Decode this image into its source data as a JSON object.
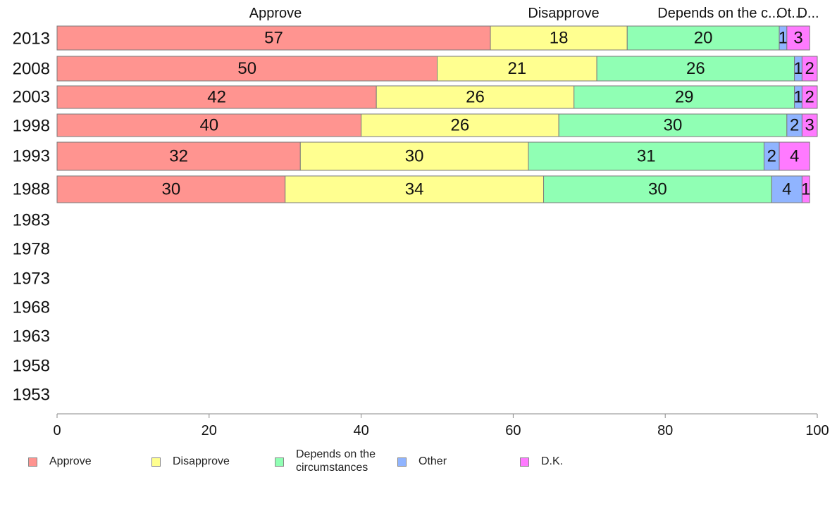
{
  "chart_data": {
    "type": "bar",
    "orientation": "horizontal",
    "stacked": true,
    "categories": [
      "2013",
      "2008",
      "2003",
      "1998",
      "1993",
      "1988",
      "1983",
      "1978",
      "1973",
      "1968",
      "1963",
      "1958",
      "1953"
    ],
    "series": [
      {
        "name": "Approve",
        "color": "#ff9490",
        "values": [
          57,
          50,
          42,
          40,
          32,
          30,
          null,
          null,
          null,
          null,
          null,
          null,
          null
        ]
      },
      {
        "name": "Disapprove",
        "color": "#ffff90",
        "values": [
          18,
          21,
          26,
          26,
          30,
          34,
          null,
          null,
          null,
          null,
          null,
          null,
          null
        ]
      },
      {
        "name": "Depends on the circumstances",
        "color": "#90ffb4",
        "values": [
          20,
          26,
          29,
          30,
          31,
          30,
          null,
          null,
          null,
          null,
          null,
          null,
          null
        ]
      },
      {
        "name": "Other",
        "color": "#90b4ff",
        "values": [
          1,
          1,
          1,
          2,
          2,
          4,
          null,
          null,
          null,
          null,
          null,
          null,
          null
        ]
      },
      {
        "name": "D.K.",
        "color": "#ff7aff",
        "values": [
          3,
          2,
          2,
          3,
          4,
          1,
          null,
          null,
          null,
          null,
          null,
          null,
          null
        ]
      }
    ],
    "top_labels": [
      "Approve",
      "Disapprove",
      "Depends on the c...",
      "Ot...",
      "D..."
    ],
    "xlim": [
      0,
      100
    ],
    "xticks": [
      "0",
      "20",
      "40",
      "60",
      "80",
      "100"
    ],
    "legend_position": "bottom",
    "legend_labels": [
      "Approve",
      "Disapprove",
      "Depends on the",
      "circumstances",
      "Other",
      "D.K."
    ],
    "grid": false
  }
}
